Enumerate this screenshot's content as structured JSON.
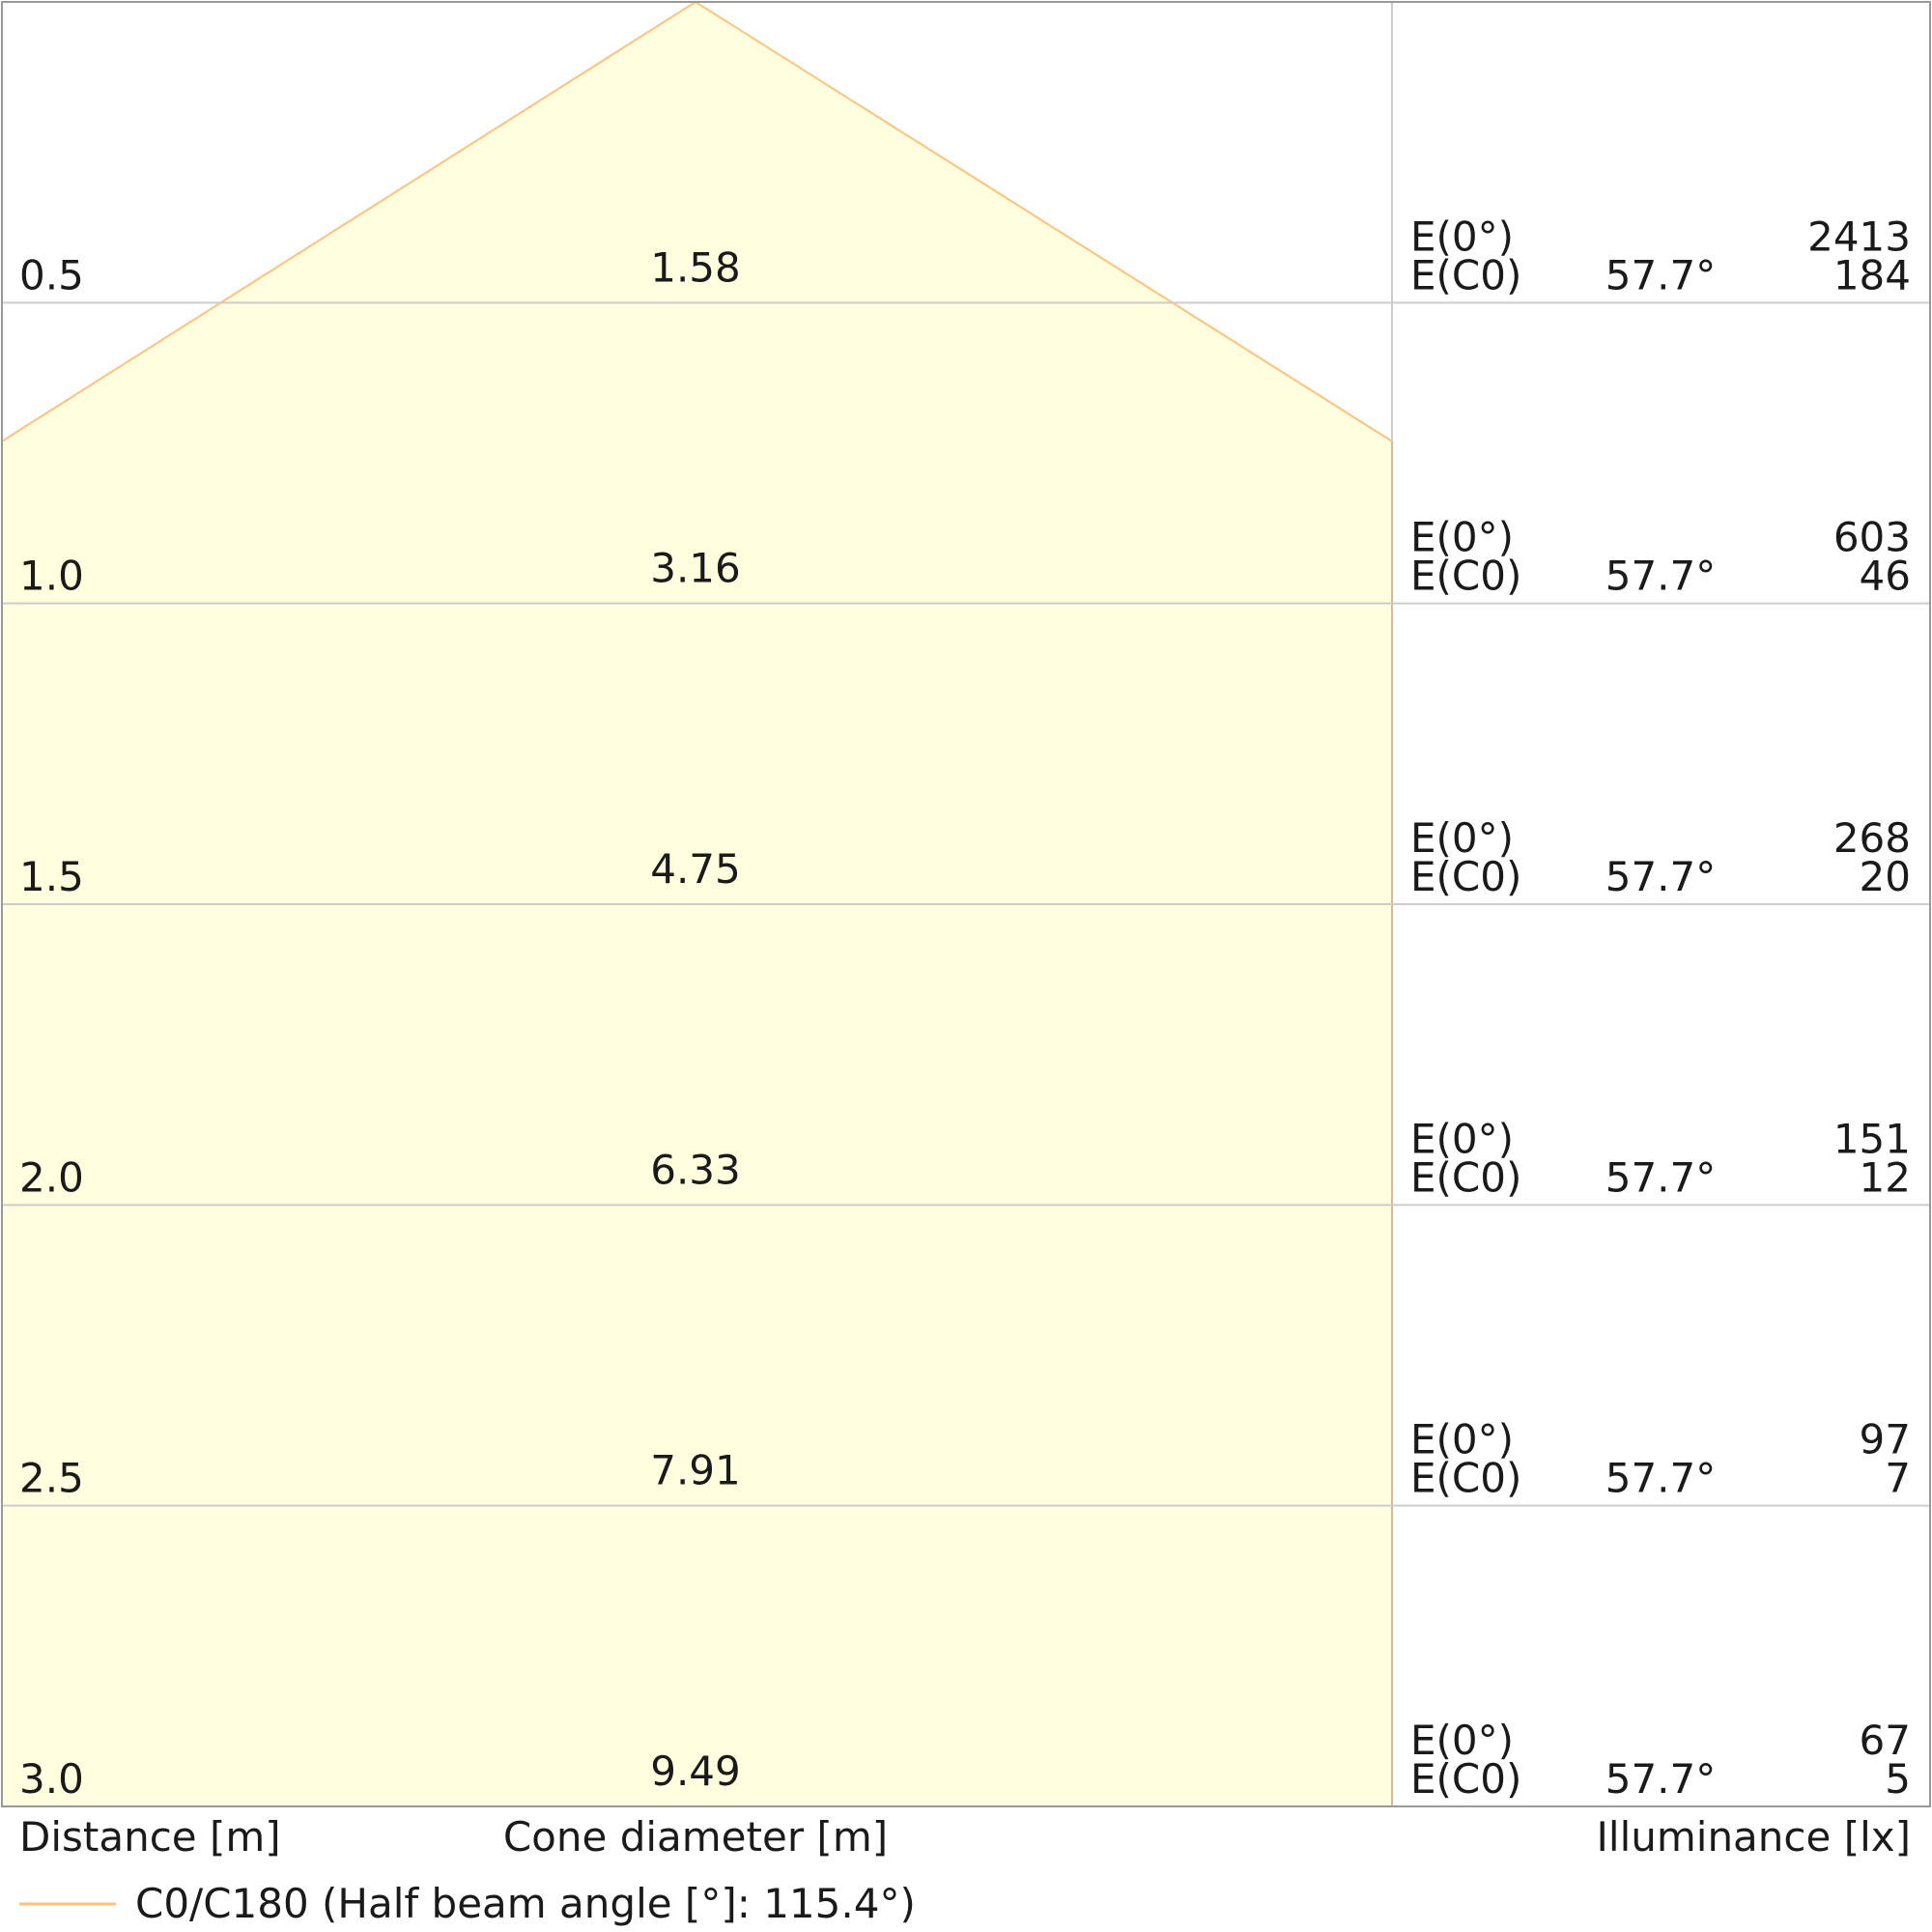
{
  "chart_data": {
    "type": "area",
    "title": "",
    "xlabel": "Cone diameter [m]",
    "ylabel": "Distance [m]",
    "right_label": "Illuminance [lx]",
    "ylim": [
      0,
      3.0
    ],
    "rows": [
      {
        "distance": "0.5",
        "diameter": "1.58",
        "e0_label": "E(0°)",
        "e0": "2413",
        "ec0_label": "E(C0)",
        "angle": "57.7°",
        "ec0": "184"
      },
      {
        "distance": "1.0",
        "diameter": "3.16",
        "e0_label": "E(0°)",
        "e0": "603",
        "ec0_label": "E(C0)",
        "angle": "57.7°",
        "ec0": "46"
      },
      {
        "distance": "1.5",
        "diameter": "4.75",
        "e0_label": "E(0°)",
        "e0": "268",
        "ec0_label": "E(C0)",
        "angle": "57.7°",
        "ec0": "20"
      },
      {
        "distance": "2.0",
        "diameter": "6.33",
        "e0_label": "E(0°)",
        "e0": "151",
        "ec0_label": "E(C0)",
        "angle": "57.7°",
        "ec0": "12"
      },
      {
        "distance": "2.5",
        "diameter": "7.91",
        "e0_label": "E(0°)",
        "e0": "97",
        "ec0_label": "E(C0)",
        "angle": "57.7°",
        "ec0": "7"
      },
      {
        "distance": "3.0",
        "diameter": "9.49",
        "e0_label": "E(0°)",
        "e0": "67",
        "ec0_label": "E(C0)",
        "angle": "57.7°",
        "ec0": "5"
      }
    ],
    "series": [
      {
        "name": "C0/C180 (Half beam angle [°]: 115.4°)",
        "half_beam_angle": 115.4,
        "color": "#ffc27a"
      }
    ],
    "cone_fill_color": "#ffffe0",
    "grid_color": "#cccccc"
  }
}
